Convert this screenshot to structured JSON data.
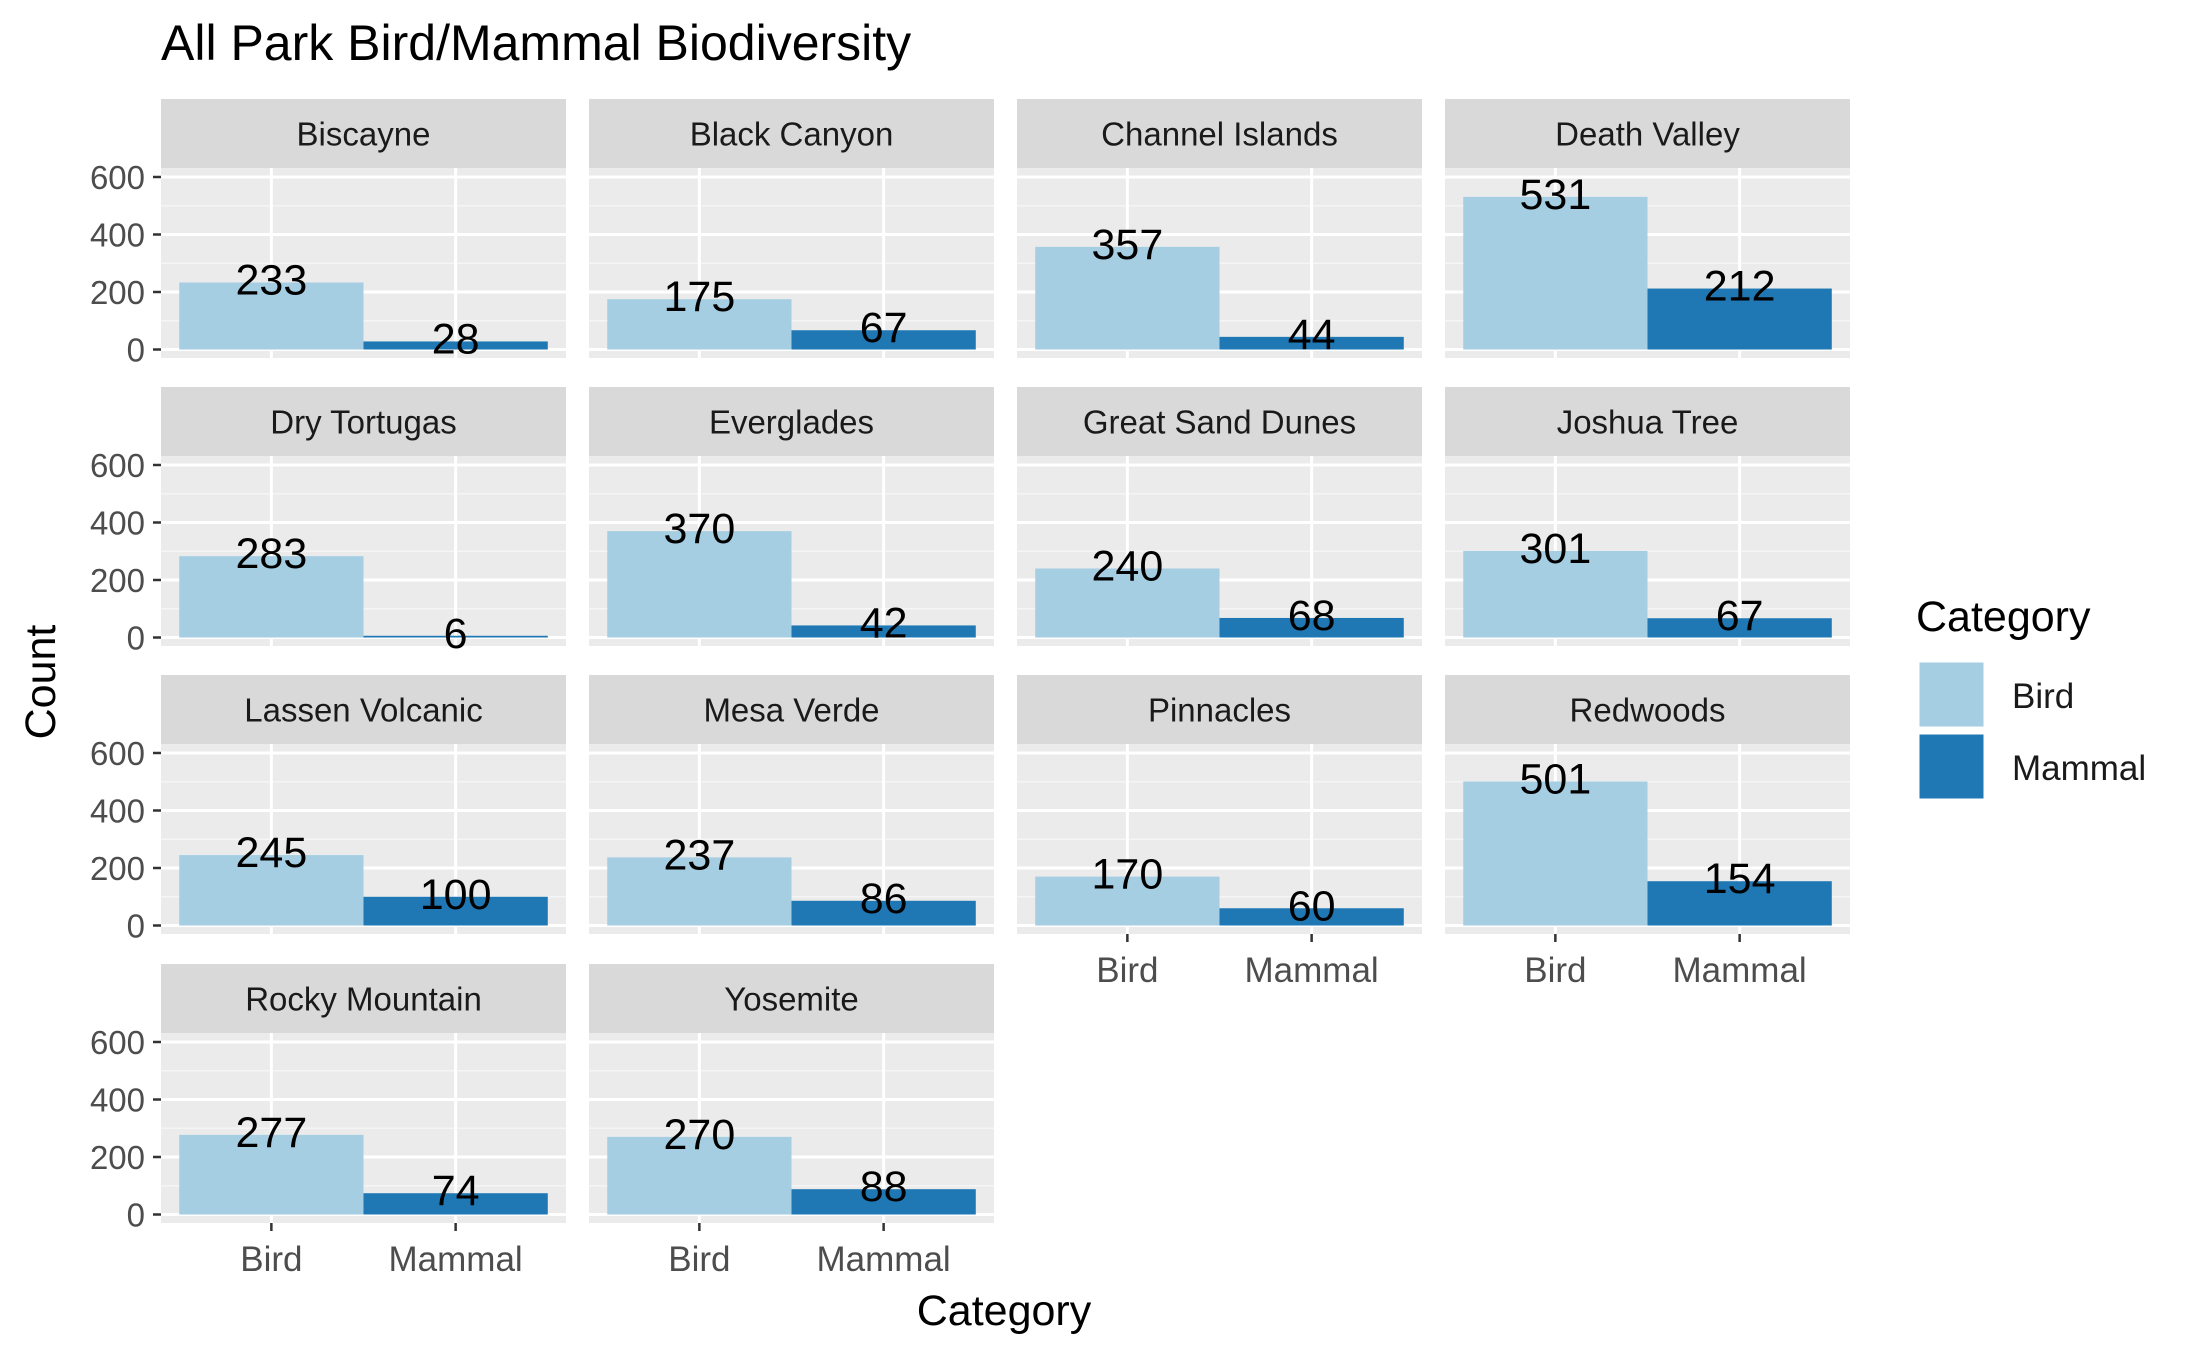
{
  "chart_data": {
    "type": "bar",
    "title": "All Park Bird/Mammal Biodiversity",
    "xlabel": "Category",
    "ylabel": "Count",
    "categories": [
      "Bird",
      "Mammal"
    ],
    "ylim": [
      0,
      600
    ],
    "yticks": [
      0,
      200,
      400,
      600
    ],
    "grid": true,
    "facet_layout": "wrap, 4 columns",
    "colors": {
      "Bird": "#a6cee3",
      "Mammal": "#1f78b4"
    },
    "legend": {
      "title": "Category",
      "position": "right",
      "entries": [
        "Bird",
        "Mammal"
      ]
    },
    "facets": [
      {
        "name": "Biscayne",
        "values": [
          233,
          28
        ]
      },
      {
        "name": "Black Canyon",
        "values": [
          175,
          67
        ]
      },
      {
        "name": "Channel Islands",
        "values": [
          357,
          44
        ]
      },
      {
        "name": "Death Valley",
        "values": [
          531,
          212
        ]
      },
      {
        "name": "Dry Tortugas",
        "values": [
          283,
          6
        ]
      },
      {
        "name": "Everglades",
        "values": [
          370,
          42
        ]
      },
      {
        "name": "Great Sand Dunes",
        "values": [
          240,
          68
        ]
      },
      {
        "name": "Joshua Tree",
        "values": [
          301,
          67
        ]
      },
      {
        "name": "Lassen Volcanic",
        "values": [
          245,
          100
        ]
      },
      {
        "name": "Mesa Verde",
        "values": [
          237,
          86
        ]
      },
      {
        "name": "Pinnacles",
        "values": [
          170,
          60
        ]
      },
      {
        "name": "Redwoods",
        "values": [
          501,
          154
        ]
      },
      {
        "name": "Rocky Mountain",
        "values": [
          277,
          74
        ]
      },
      {
        "name": "Yosemite",
        "values": [
          270,
          88
        ]
      }
    ]
  }
}
